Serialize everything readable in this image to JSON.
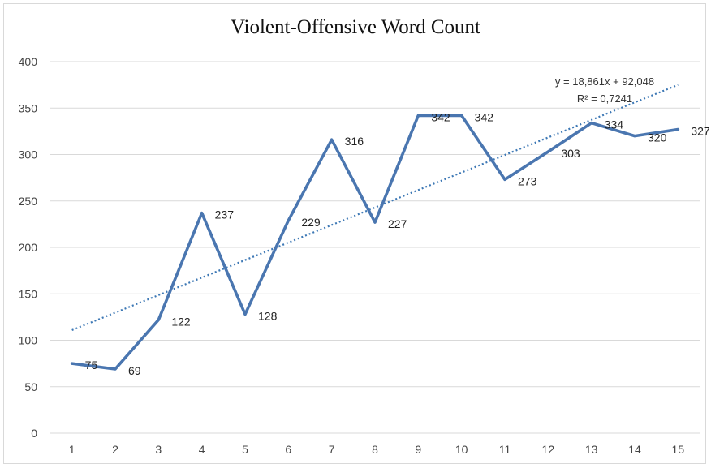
{
  "chart_data": {
    "type": "line",
    "title": "Violent-Offensive Word Count",
    "xlabel": "",
    "ylabel": "",
    "categories": [
      "1",
      "2",
      "3",
      "4",
      "5",
      "6",
      "7",
      "8",
      "9",
      "10",
      "11",
      "12",
      "13",
      "14",
      "15"
    ],
    "values": [
      75,
      69,
      122,
      237,
      128,
      229,
      316,
      227,
      342,
      342,
      273,
      303,
      334,
      320,
      327
    ],
    "ylim": [
      0,
      400
    ],
    "yticks": [
      "0",
      "50",
      "100",
      "150",
      "200",
      "250",
      "300",
      "350",
      "400"
    ],
    "grid": true,
    "legend": "none",
    "series_color": "#4a76b0",
    "trendline": {
      "type": "linear",
      "slope": 18.861,
      "intercept": 92.048,
      "equation": "y = 18,861x + 92,048",
      "r_squared": "R² = 0,7241",
      "style": "dotted",
      "color": "#3d78b5"
    }
  }
}
